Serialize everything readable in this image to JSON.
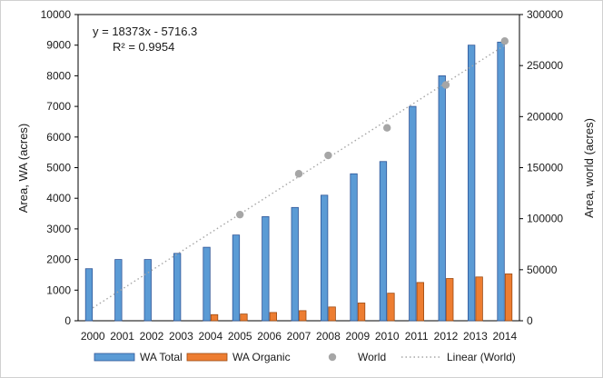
{
  "chart_data": {
    "type": "bar",
    "categories": [
      "2000",
      "2001",
      "2002",
      "2003",
      "2004",
      "2005",
      "2006",
      "2007",
      "2008",
      "2009",
      "2010",
      "2011",
      "2012",
      "2013",
      "2014"
    ],
    "series": [
      {
        "name": "WA Total",
        "axis": "left",
        "color": "#5b9bd5",
        "values": [
          1700,
          2000,
          2000,
          2200,
          2400,
          2800,
          3400,
          3700,
          4100,
          4800,
          5200,
          7000,
          8000,
          9000,
          9100
        ]
      },
      {
        "name": "WA Organic",
        "axis": "left",
        "color": "#ed7d31",
        "values": [
          0,
          0,
          0,
          0,
          200,
          220,
          270,
          330,
          450,
          580,
          900,
          1250,
          1380,
          1430,
          1530
        ]
      },
      {
        "name": "World",
        "axis": "right",
        "type": "scatter",
        "color": "#a6a6a6",
        "x": [
          "2000",
          "2001",
          "2002",
          "2003",
          "2004",
          "2005",
          "2006",
          "2007",
          "2008",
          "2009",
          "2010",
          "2011",
          "2012",
          "2013",
          "2014"
        ],
        "values": [
          null,
          null,
          null,
          null,
          null,
          104000,
          null,
          144000,
          162000,
          null,
          189000,
          null,
          231000,
          null,
          274000
        ]
      },
      {
        "name": "Linear (World)",
        "axis": "right",
        "type": "line",
        "style": "dotted",
        "color": "#a6a6a6",
        "slope": 18373,
        "intercept": -5716.3
      }
    ],
    "y_left": {
      "label": "Area, WA (acres)",
      "lim": [
        0,
        10000
      ],
      "ticks": [
        "0",
        "1000",
        "2000",
        "3000",
        "4000",
        "5000",
        "6000",
        "7000",
        "8000",
        "9000",
        "10000"
      ]
    },
    "y_right": {
      "label": "Area, world (acres)",
      "lim": [
        0,
        300000
      ],
      "ticks": [
        "0",
        "50000",
        "100000",
        "150000",
        "200000",
        "250000",
        "300000"
      ]
    },
    "annotation": {
      "equation": "y = 18373x - 5716.3",
      "r2": "R² = 0.9954"
    },
    "legend": {
      "position": "bottom",
      "items": [
        "WA Total",
        "WA Organic",
        "World",
        "Linear (World)"
      ]
    },
    "grid": false
  }
}
